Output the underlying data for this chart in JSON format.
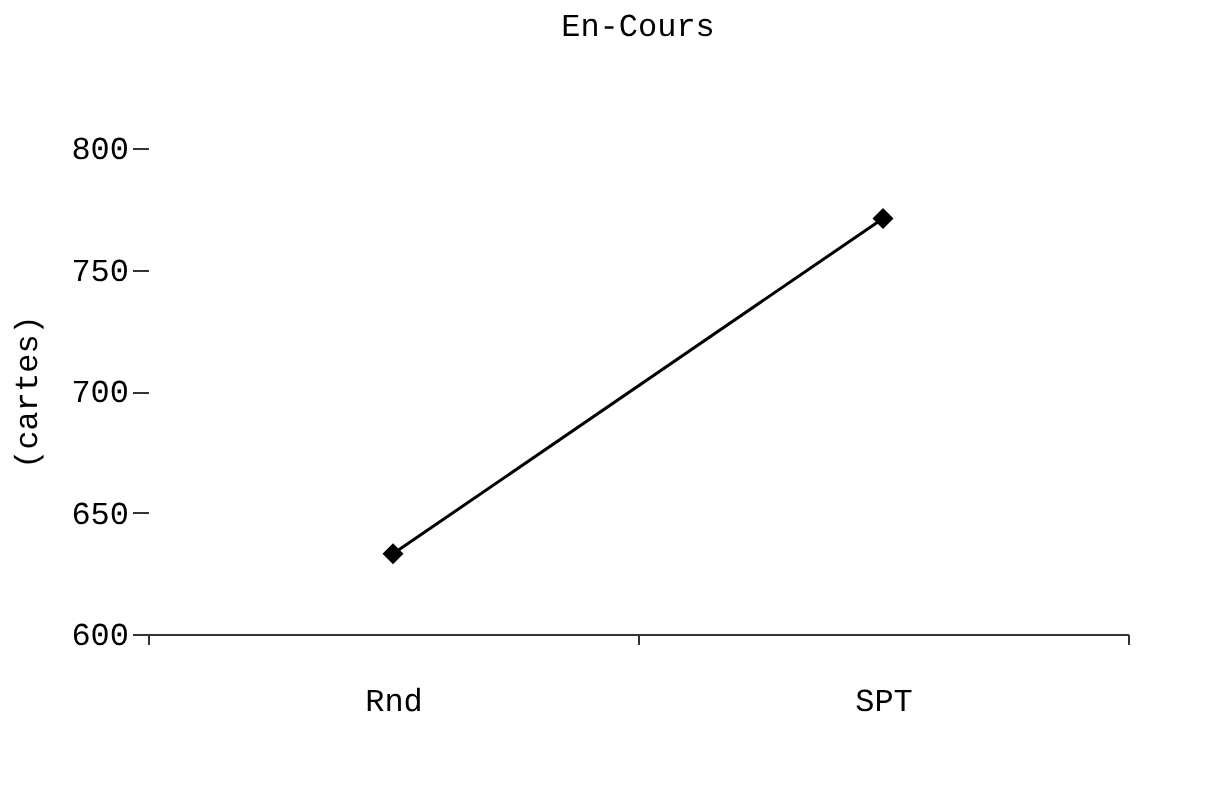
{
  "chart_data": {
    "type": "line",
    "title": "En-Cours",
    "ylabel": "(cartes)",
    "categories": [
      "Rnd",
      "SPT"
    ],
    "series": [
      {
        "color": "#000000",
        "values": [
          633,
          771
        ]
      }
    ],
    "ylim": [
      600,
      800
    ],
    "yticks": [
      600,
      650,
      700,
      750,
      800
    ],
    "marker": "diamond",
    "line_style": "solid",
    "grid": false,
    "legend": false
  }
}
